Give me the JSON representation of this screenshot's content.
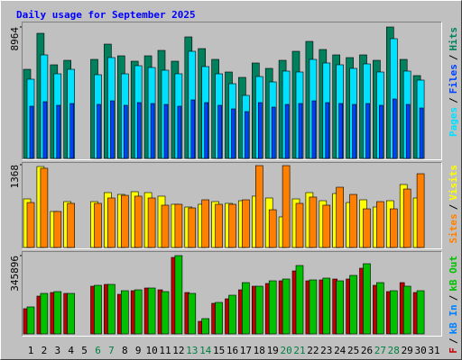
{
  "chart_data": {
    "type": "bar",
    "title": "Daily usage for September 2025",
    "legend_separator": "/",
    "categories": [
      "1",
      "2",
      "3",
      "4",
      "5",
      "6",
      "7",
      "8",
      "9",
      "10",
      "11",
      "12",
      "13",
      "14",
      "15",
      "16",
      "17",
      "18",
      "19",
      "20",
      "21",
      "22",
      "23",
      "24",
      "25",
      "26",
      "27",
      "28",
      "29",
      "30",
      "31"
    ],
    "category_colors": [
      "#000000",
      "#000000",
      "#000000",
      "#000000",
      "#000000",
      "#008040",
      "#008040",
      "#000000",
      "#000000",
      "#000000",
      "#000000",
      "#000000",
      "#008040",
      "#008040",
      "#000000",
      "#000000",
      "#000000",
      "#000000",
      "#000000",
      "#008040",
      "#008040",
      "#000000",
      "#000000",
      "#000000",
      "#000000",
      "#000000",
      "#008040",
      "#008040",
      "#000000",
      "#000000",
      "#000000"
    ],
    "panels": [
      {
        "ylim": [
          0,
          8964
        ],
        "yticks": [
          8964
        ],
        "series": [
          {
            "name": "Hits",
            "color": "#00805c",
            "values": [
              6078,
              8534,
              6385,
              6692,
              0,
              6754,
              7797,
              6999,
              6631,
              6999,
              7368,
              6631,
              8289,
              7490,
              6754,
              5894,
              5526,
              6508,
              6140,
              6692,
              7306,
              7982,
              7429,
              7061,
              6877,
              7061,
              6692,
              8964,
              6754,
              5649,
              null
            ]
          },
          {
            "name": "Pages",
            "color": "#00e0ff",
            "values": [
              5403,
              7061,
              5771,
              6078,
              0,
              5710,
              6877,
              5771,
              6324,
              6201,
              6017,
              5771,
              7306,
              6263,
              5771,
              5096,
              4298,
              5587,
              5219,
              5956,
              5894,
              6754,
              6508,
              6385,
              6140,
              6447,
              5894,
              8166,
              5956,
              5342,
              null
            ]
          },
          {
            "name": "Files",
            "color": "#0040ff",
            "values": [
              3561,
              3868,
              3622,
              3745,
              0,
              3684,
              3929,
              3622,
              3806,
              3745,
              3684,
              3561,
              3990,
              3806,
              3622,
              3377,
              3193,
              3806,
              3500,
              3684,
              3745,
              3929,
              3806,
              3745,
              3684,
              3745,
              3622,
              4052,
              3684,
              3438,
              null
            ]
          }
        ]
      },
      {
        "ylim": [
          0,
          1368
        ],
        "yticks": [
          1368
        ],
        "series": [
          {
            "name": "Visits",
            "color": "#ffff00",
            "values": [
              803,
              1338,
              595,
              758,
              0,
              758,
              907,
              877,
              922,
              907,
              848,
              714,
              669,
              714,
              758,
              729,
              773,
              848,
              818,
              506,
              803,
              907,
              773,
              892,
              743,
              788,
              669,
              773,
              1041,
              818,
              null
            ]
          },
          {
            "name": "Sites",
            "color": "#ff8000",
            "values": [
              743,
              1309,
              595,
              729,
              0,
              729,
              818,
              862,
              848,
              818,
              699,
              714,
              654,
              788,
              714,
              714,
              788,
              1353,
              624,
              1353,
              729,
              833,
              699,
              996,
              877,
              639,
              758,
              639,
              966,
              1219,
              null
            ]
          }
        ]
      },
      {
        "ylim": [
          0,
          345896
        ],
        "yticks": [
          345896
        ],
        "series": [
          {
            "name": "kB F",
            "color": "#c00000",
            "values": [
              111322,
              166983,
              182887,
              178911,
              0,
              210717,
              218669,
              174935,
              190839,
              202766,
              194815,
              337944,
              182887,
              55662,
              135177,
              155056,
              194815,
              210717,
              222644,
              234572,
              278306,
              234572,
              238548,
              242524,
              242524,
              290233,
              214693,
              186863,
              226620,
              182887,
              null
            ]
          },
          {
            "name": "kB In",
            "color": "#0080ff",
            "values": [
              0,
              0,
              0,
              0,
              0,
              0,
              0,
              0,
              0,
              0,
              0,
              0,
              0,
              0,
              0,
              0,
              0,
              0,
              0,
              0,
              0,
              0,
              0,
              0,
              0,
              0,
              0,
              0,
              0,
              0,
              null
            ]
          },
          {
            "name": "kB Out",
            "color": "#00c000",
            "values": [
              119275,
              178911,
              186863,
              178911,
              0,
              214693,
              218669,
              190839,
              194815,
              202766,
              186863,
              345896,
              178911,
              67589,
              139153,
              170959,
              226620,
              210717,
              234572,
              242524,
              302160,
              238548,
              246499,
              234572,
              258427,
              310111,
              226620,
              190839,
              210717,
              190839,
              null
            ]
          }
        ]
      }
    ]
  }
}
